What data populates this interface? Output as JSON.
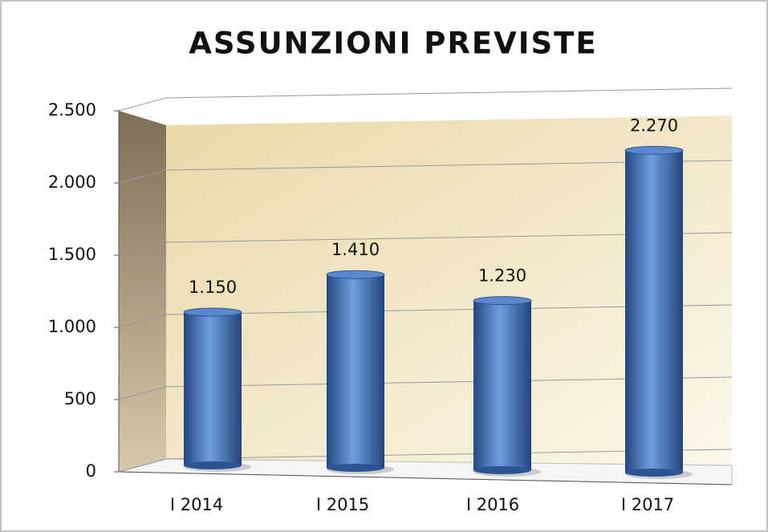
{
  "chart_data": {
    "type": "bar",
    "title": "ASSUNZIONI PREVISTE",
    "categories": [
      "I 2014",
      "I 2015",
      "I 2016",
      "I 2017"
    ],
    "values": [
      1150,
      1410,
      1230,
      2270
    ],
    "value_labels": [
      "1.150",
      "1.410",
      "1.230",
      "2.270"
    ],
    "color": "#3f6fb5",
    "ylim": [
      0,
      2500
    ],
    "yticks": [
      0,
      500,
      {
        "value": 1000,
        "label": "1.000"
      },
      {
        "value": 1500,
        "label": "1.500"
      },
      {
        "value": 2000,
        "label": "2.000"
      },
      {
        "value": 2500,
        "label": "2.500"
      }
    ],
    "grid": true
  }
}
